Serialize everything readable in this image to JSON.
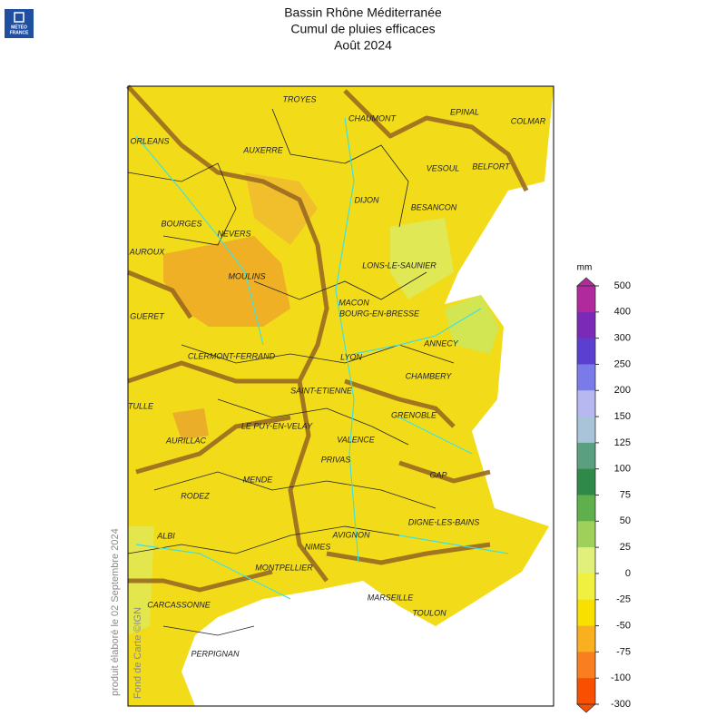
{
  "header": {
    "logo": [
      "MÉTÉO",
      "FRANCE"
    ],
    "title": [
      "Bassin Rhône Méditerranée",
      "Cumul de pluies efficaces",
      "Août 2024"
    ]
  },
  "map": {
    "cities": [
      "TROYES",
      "CHAUMONT",
      "EPINAL",
      "COLMAR",
      "ORLEANS",
      "AUXERRE",
      "VESOUL",
      "BELFORT",
      "DIJON",
      "BESANCON",
      "BOURGES",
      "NEVERS",
      "AUROUX",
      "LONS-LE-SAUNIER",
      "MOULINS",
      "MACON",
      "BOURG-EN-BRESSE",
      "GUERET",
      "ANNECY",
      "CLERMONT-FERRAND",
      "LYON",
      "CHAMBERY",
      "SAINT-ETIENNE",
      "TULLE",
      "GRENOBLE",
      "LE PUY-EN-VELAY",
      "AURILLAC",
      "VALENCE",
      "PRIVAS",
      "GAP",
      "MENDE",
      "RODEZ",
      "DIGNE-LES-BAINS",
      "ALBI",
      "AVIGNON",
      "NIMES",
      "MONTPELLIER",
      "MARSEILLE",
      "CARCASSONNE",
      "TOULON",
      "PERPIGNAN"
    ]
  },
  "colorbar": {
    "unit": "mm",
    "ticks": [
      500,
      400,
      300,
      250,
      200,
      150,
      125,
      100,
      75,
      50,
      25,
      0,
      -25,
      -50,
      -75,
      -100,
      -300
    ],
    "colors": [
      "#b02a9e",
      "#7b2ab8",
      "#5a3fd0",
      "#7a7ae8",
      "#b8b8f0",
      "#a9c4d8",
      "#5aa080",
      "#2f8a4a",
      "#5fb04c",
      "#9fd05a",
      "#e0f07a",
      "#f0f040",
      "#f8e000",
      "#f8b020",
      "#f87e20",
      "#f85000"
    ]
  },
  "footer": {
    "produced": "produit élaboré le 02 Septembre 2024",
    "source": "Fond de Carte ©IGN"
  }
}
